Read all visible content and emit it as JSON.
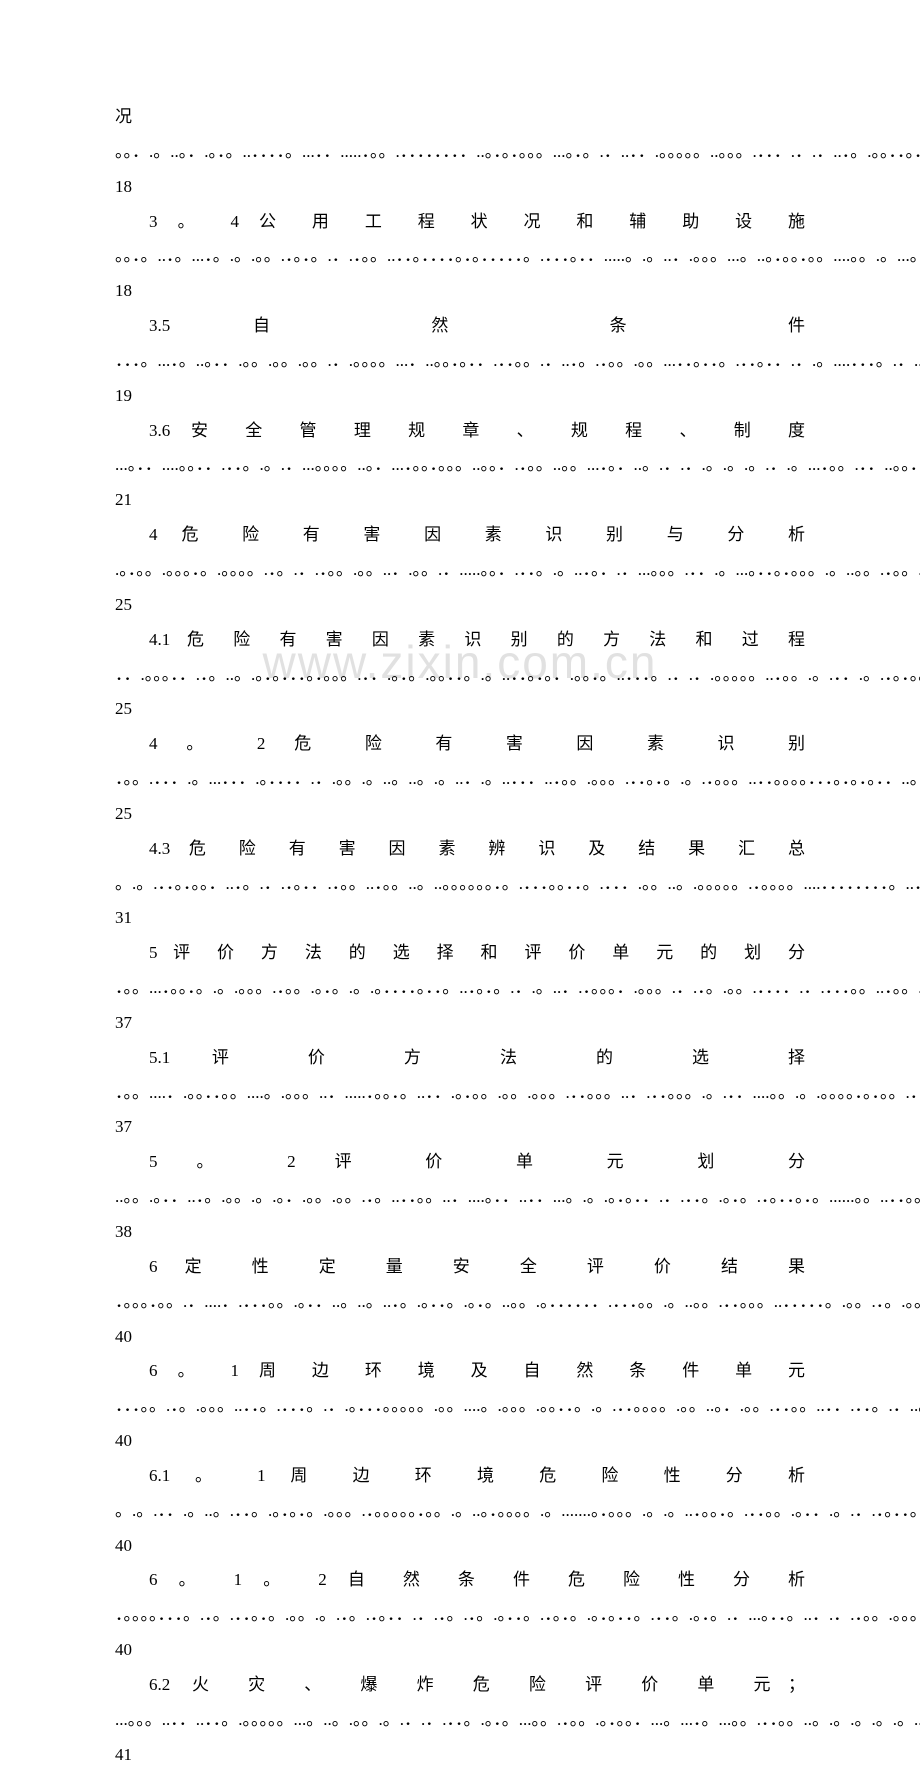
{
  "watermark": "www.zixin.com.cn",
  "entries": [
    {
      "num": "",
      "title": "况",
      "page": "18",
      "dots": 260,
      "indent": false
    },
    {
      "num": "3 。 4",
      "title": "公 用 工 程 状 况 和 辅 助 设 施",
      "page": "18",
      "dots": 210,
      "indent": true
    },
    {
      "num": "3.5",
      "title": "自 然 条 件",
      "page": "19",
      "dots": 280,
      "indent": true
    },
    {
      "num": "3.6",
      "title": "安 全 管 理 规 章 、 规 程 、 制 度",
      "page": "21",
      "dots": 220,
      "indent": true
    },
    {
      "num": "4",
      "title": "危 险 有 害 因 素 识 别 与 分 析",
      "page": "25",
      "dots": 240,
      "indent": true
    },
    {
      "num": "4.1",
      "title": "危 险 有 害 因 素 识 别 的 方 法 和 过 程",
      "page": "25",
      "dots": 190,
      "indent": true
    },
    {
      "num": "4 。 2",
      "title": "危 险 有 害 因 素 识 别",
      "page": "25",
      "dots": 255,
      "indent": true
    },
    {
      "num": "4.3",
      "title": "危 险 有 害 因 素 辨 识 及 结 果 汇 总",
      "page": "31",
      "dots": 205,
      "indent": true
    },
    {
      "num": "5",
      "title": "评 价 方 法 的 选 择 和 评 价 单 元 的 划 分",
      "page": "37",
      "dots": 185,
      "indent": true
    },
    {
      "num": "5.1",
      "title": "评 价 方 法 的 选 择",
      "page": "37",
      "dots": 265,
      "indent": true
    },
    {
      "num": "5 。 2",
      "title": "评 价 单 元 划 分",
      "page": "38",
      "dots": 270,
      "indent": true
    },
    {
      "num": "6",
      "title": "定 性 定 量 安 全 评 价 结 果",
      "page": "40",
      "dots": 245,
      "indent": true
    },
    {
      "num": "6 。 1",
      "title": "周 边 环 境 及 自 然 条 件 单 元",
      "page": "40",
      "dots": 220,
      "indent": true
    },
    {
      "num": "6.1 。 1",
      "title": "周 边 环 境 危 险 性 分 析",
      "page": "40",
      "dots": 225,
      "indent": true
    },
    {
      "num": "6 。 1 。 2",
      "title": "自 然 条 件 危 险 性 分 析",
      "page": "40",
      "dots": 220,
      "indent": true
    },
    {
      "num": "6.2",
      "title": "火 灾 、 爆 炸 危 险 评 价 单 元；",
      "page": "41",
      "dots": 215,
      "indent": true
    }
  ],
  "dotChars": [
    ".",
    "。",
    "．",
    "。。",
    ".．",
    "．。",
    "。.",
    "．．",
    "..",
    ".。"
  ]
}
